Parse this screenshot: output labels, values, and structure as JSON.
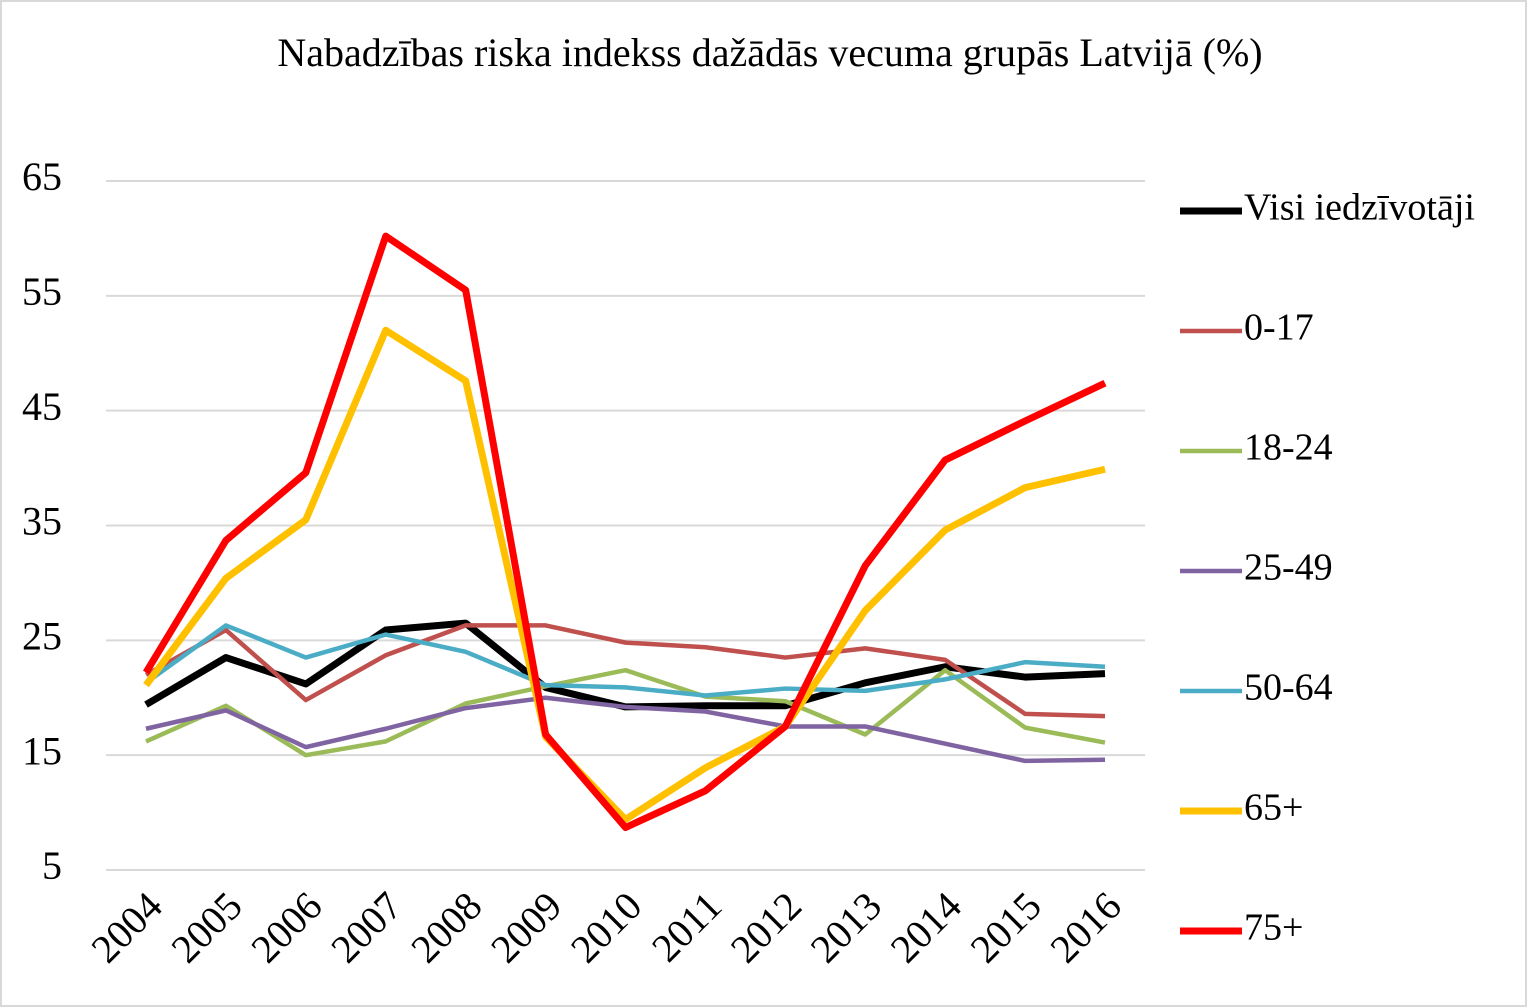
{
  "chart_data": {
    "type": "line",
    "title": "Nabadzības riska indekss dažādās vecuma grupās Latvijā (%)",
    "categories": [
      "2004",
      "2005",
      "2006",
      "2007",
      "2008",
      "2009",
      "2010",
      "2011",
      "2012",
      "2013",
      "2014",
      "2015",
      "2016"
    ],
    "ylim": [
      5,
      65
    ],
    "yticks": [
      5,
      15,
      25,
      35,
      45,
      55,
      65
    ],
    "grid": true,
    "legend": "right",
    "series": [
      {
        "name": "Visi iedzīvotāji",
        "color": "#000000",
        "values": [
          19.4,
          23.5,
          21.2,
          25.9,
          26.5,
          20.9,
          19.2,
          19.3,
          19.3,
          21.3,
          22.7,
          21.8,
          22.1
        ]
      },
      {
        "name": "0-17",
        "color": "#c0504d",
        "values": [
          22.0,
          25.9,
          19.8,
          23.7,
          26.3,
          26.3,
          24.8,
          24.4,
          23.5,
          24.3,
          23.3,
          18.6,
          18.4
        ]
      },
      {
        "name": "18-24",
        "color": "#9bbb59",
        "values": [
          16.2,
          19.3,
          15.0,
          16.2,
          19.5,
          21.0,
          22.4,
          20.1,
          19.7,
          16.8,
          22.4,
          17.4,
          16.1
        ]
      },
      {
        "name": "25-49",
        "color": "#8064a2",
        "values": [
          17.3,
          18.9,
          15.7,
          17.3,
          19.1,
          20.0,
          19.2,
          18.8,
          17.5,
          17.5,
          16.0,
          14.5,
          14.6
        ]
      },
      {
        "name": "50-64",
        "color": "#4bacc6",
        "values": [
          21.3,
          26.3,
          23.5,
          25.5,
          24.0,
          21.1,
          20.9,
          20.2,
          20.8,
          20.6,
          21.6,
          23.1,
          22.7
        ]
      },
      {
        "name": "65+",
        "color": "#ffc000",
        "values": [
          21.1,
          30.4,
          35.5,
          52.0,
          47.6,
          16.6,
          9.4,
          13.9,
          17.5,
          27.6,
          34.6,
          38.3,
          39.9
        ]
      },
      {
        "name": "75+",
        "color": "#ff0000",
        "values": [
          22.2,
          33.7,
          39.6,
          60.2,
          55.5,
          16.8,
          8.7,
          11.9,
          17.5,
          31.5,
          40.7,
          44.1,
          47.4
        ]
      }
    ]
  }
}
